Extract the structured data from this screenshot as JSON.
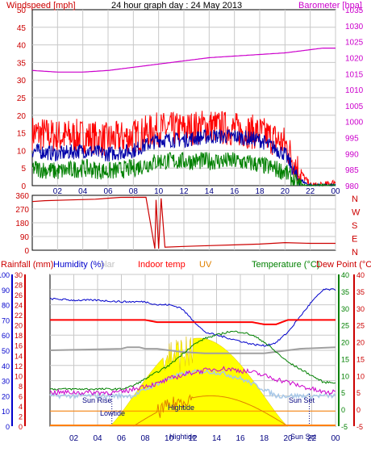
{
  "title": "24 hour graph day : 24 May 2013",
  "colors": {
    "windspeed": "#ff0000",
    "windavg": "#0000aa",
    "windgust_low": "#008000",
    "barometer": "#cc00cc",
    "winddir": "#cc0000",
    "humidity": "#0000cc",
    "rainfall": "#cc0000",
    "indoor": "#ff0000",
    "uv": "#e08000",
    "solar": "#ffff00",
    "temperature": "#008000",
    "dewpoint": "#cc0000",
    "grid": "#c8c8c8",
    "axis": "#000000",
    "labels_blue": "#0000cc"
  },
  "xaxis": {
    "ticks": [
      "02",
      "04",
      "06",
      "08",
      "10",
      "12",
      "14",
      "16",
      "18",
      "20",
      "22",
      "00"
    ]
  },
  "panel1": {
    "left_label": "Windspeed [mph]",
    "right_label": "Barometer [hpa]",
    "left_ticks": [
      "50",
      "45",
      "40",
      "35",
      "30",
      "25",
      "20",
      "15",
      "10",
      "5",
      "0"
    ],
    "right_ticks": [
      "1035",
      "1030",
      "1025",
      "1020",
      "1015",
      "1010",
      "1005",
      "1000",
      "995",
      "990",
      "985",
      "980"
    ]
  },
  "panel2": {
    "left_ticks": [
      "360",
      "270",
      "180",
      "90",
      "0"
    ],
    "right_labels": [
      "N",
      "W",
      "S",
      "E",
      "N"
    ]
  },
  "panel3": {
    "labels": {
      "rainfall": "Rainfall (mm)",
      "humidity": "Humidity (%)",
      "solar": "olar",
      "indoor": "Indoor temp",
      "uv": "UV",
      "temperature": "Temperature (°C)",
      "dewpoint": "Dew Point (°C)"
    },
    "humidity_ticks": [
      "100",
      "90",
      "80",
      "70",
      "60",
      "50",
      "40",
      "30",
      "20",
      "10",
      "0"
    ],
    "rain_ticks": [
      "30",
      "28",
      "26",
      "24",
      "22",
      "20",
      "18",
      "16",
      "14",
      "12",
      "10",
      "8",
      "6",
      "4",
      "2",
      "0"
    ],
    "temp_ticks": [
      "40",
      "35",
      "30",
      "25",
      "20",
      "15",
      "10",
      "5",
      "0",
      "-5"
    ],
    "dew_ticks": [
      "40",
      "35",
      "30",
      "25",
      "20",
      "15",
      "10",
      "5",
      "0",
      "-5"
    ],
    "annotations": {
      "sunrise": "Sun Rise",
      "sunset": "Sun Set",
      "lowtide": "Lowtide",
      "hightide": "Hightide",
      "hightide_axis": "Hightide",
      "sunset_axis": "Sun Set"
    }
  },
  "chart_data": [
    {
      "type": "line",
      "title": "24 hour graph day : 24 May 2013",
      "ylabel": "Windspeed [mph]",
      "y2label": "Barometer [hpa]",
      "ylim": [
        0,
        50
      ],
      "y2lim": [
        980,
        1035
      ],
      "x": [
        0,
        2,
        4,
        6,
        8,
        10,
        12,
        14,
        16,
        18,
        20,
        21,
        22,
        23,
        24
      ],
      "series": [
        {
          "values": [
            15,
            14,
            14,
            13,
            14,
            16,
            16,
            17,
            16,
            15,
            12,
            5,
            0,
            0,
            1
          ]
        },
        {
          "values": [
            10,
            9,
            10,
            9,
            10,
            13,
            13,
            14,
            14,
            13,
            9,
            2,
            0,
            0,
            0
          ]
        },
        {
          "values": [
            5,
            4,
            5,
            4,
            5,
            7,
            7,
            7,
            7,
            6,
            4,
            0,
            0,
            0,
            0
          ]
        },
        {
          "values": [
            1016,
            1015.5,
            1015.5,
            1016,
            1017,
            1018,
            1019,
            1020,
            1020.5,
            1021,
            1021.5,
            1022,
            1022.5,
            1023,
            1023
          ]
        }
      ]
    },
    {
      "type": "line",
      "ylim": [
        0,
        360
      ],
      "x": [
        0,
        1,
        3,
        5,
        7,
        9,
        9.7,
        9.8,
        10,
        10.2,
        10.5,
        12,
        14,
        16,
        18,
        20,
        22,
        24
      ],
      "series": [
        {
          "values": [
            320,
            325,
            330,
            335,
            345,
            350,
            10,
            330,
            10,
            340,
            20,
            25,
            30,
            35,
            40,
            50,
            45,
            45
          ]
        }
      ]
    },
    {
      "type": "line",
      "ylim": [
        0,
        100
      ],
      "x": [
        0,
        2,
        4,
        6,
        7,
        8,
        9,
        10,
        11,
        12,
        13,
        14,
        15,
        16,
        17,
        18,
        19,
        20,
        21,
        22,
        23,
        24
      ],
      "series": [
        {
          "values": [
            84,
            83,
            83,
            82,
            82,
            82,
            80,
            80,
            78,
            70,
            62,
            60,
            58,
            56,
            54,
            53,
            55,
            62,
            72,
            82,
            90,
            90
          ]
        },
        {
          "values": [
            3,
            3,
            3,
            3,
            3,
            3,
            3,
            3,
            3,
            3,
            3,
            3,
            3,
            3,
            3,
            3,
            3,
            3,
            3,
            3,
            3,
            3
          ]
        },
        {
          "values": [
            6,
            6,
            6,
            6,
            7,
            9,
            11,
            13,
            16,
            19,
            21,
            22,
            23,
            23,
            22,
            20,
            17,
            14,
            12,
            10,
            8,
            8
          ]
        },
        {
          "values": [
            1,
            1,
            1,
            1,
            1.2,
            1.4,
            1.5,
            1.8,
            2,
            2.2,
            2.3,
            2.4,
            2.4,
            2.3,
            2.2,
            2,
            1.8,
            1.6,
            1.4,
            1.2,
            1,
            1
          ]
        },
        {
          "values": [
            24,
            24,
            24,
            24,
            24,
            24,
            23.5,
            23.5,
            23.5,
            23.5,
            23.5,
            23.5,
            23.5,
            23.5,
            23.5,
            23,
            23,
            24,
            24,
            24,
            24,
            24
          ]
        }
      ]
    }
  ]
}
